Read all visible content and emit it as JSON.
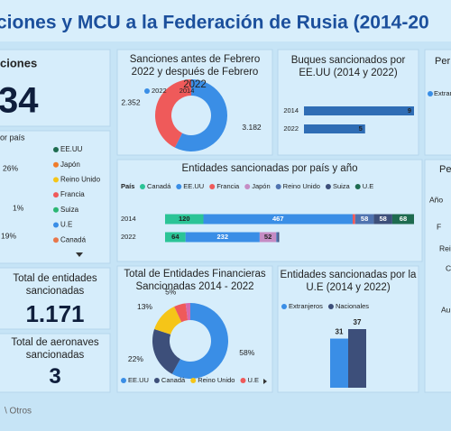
{
  "header": {
    "title": "ciones y MCU a la Federación de Rusia (2014-20"
  },
  "cards": [
    {
      "title": "ciones",
      "value": "34"
    },
    {
      "title": "Total de entidades sancionadas",
      "value": "1.171"
    },
    {
      "title": "Total de aeronaves sancionadas",
      "value": "3"
    }
  ],
  "country_panel": {
    "title": "or país",
    "labels": [
      "26%",
      "1%",
      "19%"
    ],
    "legend": [
      {
        "name": "EE.UU",
        "color": "#1e6b4f"
      },
      {
        "name": "Japón",
        "color": "#f07c2a"
      },
      {
        "name": "Reino Unido",
        "color": "#f5c518"
      },
      {
        "name": "Francia",
        "color": "#ef5a5a"
      },
      {
        "name": "Suiza",
        "color": "#2bb673"
      },
      {
        "name": "U.E",
        "color": "#3a8ee6"
      },
      {
        "name": "Canadá",
        "color": "#e8764a"
      }
    ]
  },
  "chart_data": [
    {
      "type": "donut",
      "title": "Sanciones antes de Febrero 2022 y después de Febrero 2022",
      "categories": [
        "2022",
        "2014"
      ],
      "values": [
        3182,
        2352
      ],
      "value_labels": [
        "3.182",
        "2.352"
      ],
      "colors": [
        "#3a8ee6",
        "#ef5a5a"
      ]
    },
    {
      "type": "hbar",
      "title": "Buques sancionados por EE.UU (2014 y 2022)",
      "categories": [
        "2014",
        "2022"
      ],
      "values": [
        9,
        5
      ],
      "color": "#2f6db5"
    },
    {
      "type": "stacked-hbar",
      "title": "Entidades sancionadas por país y año",
      "legend_title": "País",
      "categories": [
        "2014",
        "2022"
      ],
      "series": [
        {
          "name": "Canadá",
          "color": "#2bc496",
          "values": [
            120,
            64
          ]
        },
        {
          "name": "EE.UU",
          "color": "#3a8ee6",
          "values": [
            467,
            232
          ]
        },
        {
          "name": "Francia",
          "color": "#ef5a5a",
          "values": [
            8,
            null
          ]
        },
        {
          "name": "Japón",
          "color": "#c58cc4",
          "values": [
            null,
            52
          ]
        },
        {
          "name": "Reino Unido",
          "color": "#4f73b0",
          "values": [
            58,
            5
          ]
        },
        {
          "name": "Suiza",
          "color": "#3d4f7a",
          "values": [
            58,
            4
          ]
        },
        {
          "name": "U.E",
          "color": "#1e6b4f",
          "values": [
            68,
            null
          ]
        }
      ]
    },
    {
      "type": "donut",
      "title": "Total de Entidades Financieras Sancionadas 2014 - 2022",
      "categories": [
        "EE.UU",
        "Canadá",
        "Reino Unido",
        "U.E",
        null
      ],
      "values": [
        58,
        22,
        13,
        5,
        2
      ],
      "value_labels": [
        "58%",
        "22%",
        "13%",
        "5%",
        null
      ],
      "colors": [
        "#3a8ee6",
        "#3d4f7a",
        "#f5c518",
        "#ef5a5a",
        "#d66ab0"
      ]
    },
    {
      "type": "column",
      "title": "Entidades sancionadas por la U.E (2014 y 2022)",
      "series": [
        {
          "name": "Extranjeros",
          "color": "#3a8ee6",
          "values": [
            31
          ]
        },
        {
          "name": "Nacionales",
          "color": "#3d4f7a",
          "values": [
            37
          ]
        }
      ]
    }
  ],
  "cropped_labels": [
    "Per",
    "Extran",
    "Pe",
    "Año",
    "F",
    "Rein",
    "C",
    "Au"
  ],
  "footer": "\\ Otros"
}
